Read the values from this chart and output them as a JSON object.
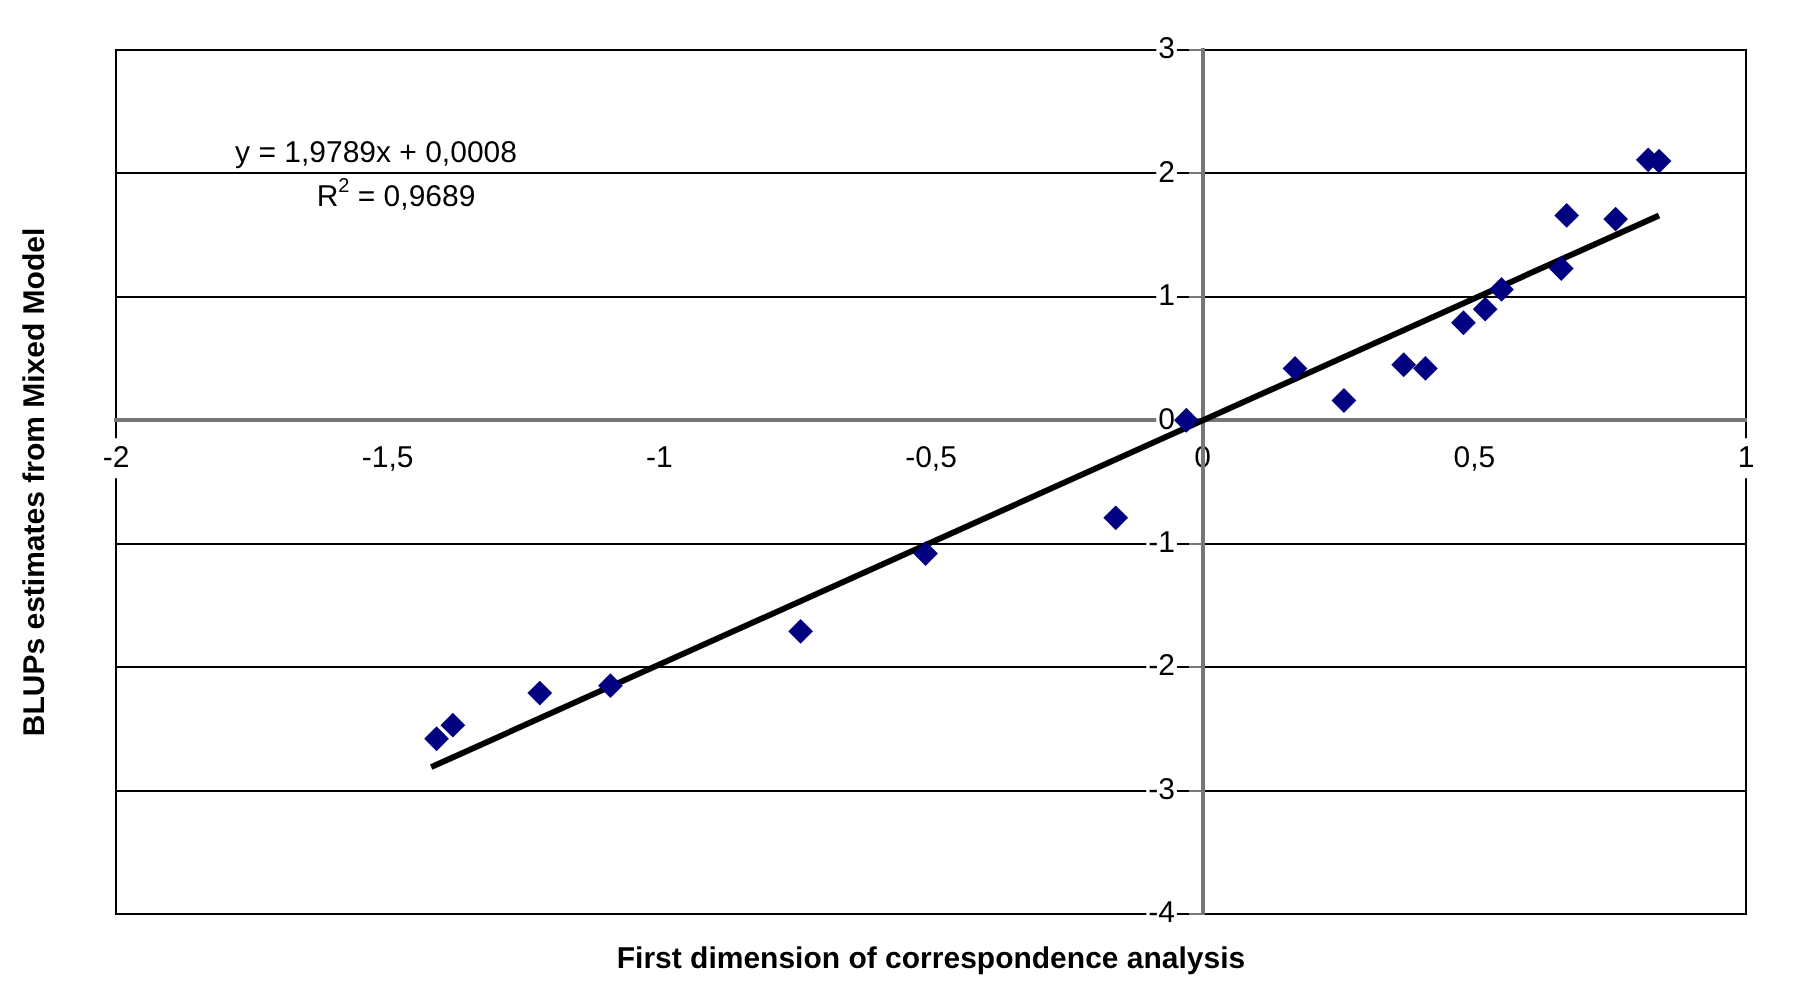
{
  "chart_data": {
    "type": "scatter",
    "xlabel": "First dimension of correspondence analysis",
    "ylabel": "BLUPs estimates from Mixed Model",
    "annotations": [
      "y = 1,9789x + 0,0008",
      "R$^{2}$ = 0,9689"
    ],
    "xlim": [
      -2,
      1
    ],
    "ylim": [
      -4,
      3
    ],
    "xticks": [
      -2,
      {
        "value": -1.5,
        "label": "-1,5"
      },
      -1,
      {
        "value": -0.5,
        "label": "-0,5"
      },
      0,
      {
        "value": 0.5,
        "label": "0,5"
      },
      1
    ],
    "yticks": [
      -4,
      -3,
      -2,
      -1,
      0,
      1,
      2,
      3
    ],
    "grid": "y",
    "legend": false,
    "marker": "diamond",
    "series": [
      {
        "color": "#000080",
        "x": [
          -1.41,
          -1.38,
          -1.22,
          -1.09,
          -0.74,
          -0.51,
          -0.16,
          -0.03,
          0.17,
          0.26,
          0.37,
          0.41,
          0.48,
          0.52,
          0.55,
          0.66,
          0.67,
          0.76,
          0.82,
          0.84
        ],
        "values": [
          -2.58,
          -2.47,
          -2.21,
          -2.15,
          -1.71,
          -1.08,
          -0.79,
          0.0,
          0.42,
          0.16,
          0.45,
          0.42,
          0.79,
          0.9,
          1.06,
          1.23,
          1.66,
          1.63,
          2.11,
          2.1
        ]
      },
      {
        "type": "line",
        "color": "#000000",
        "line_style": "solid",
        "marker": "none",
        "x": [
          -1.42,
          0.84
        ],
        "values": [
          -2.81,
          1.66
        ]
      }
    ]
  }
}
